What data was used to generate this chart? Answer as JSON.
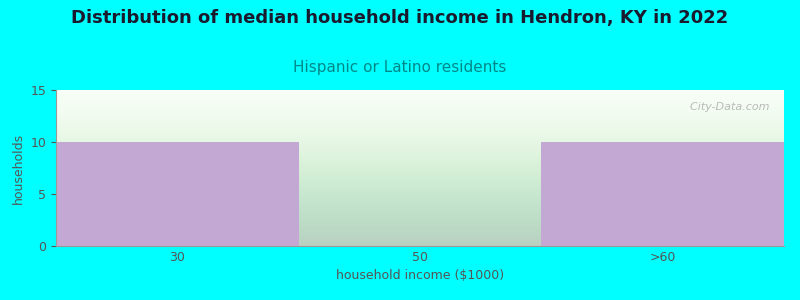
{
  "title": "Distribution of median household income in Hendron, KY in 2022",
  "subtitle": "Hispanic or Latino residents",
  "xlabel": "household income ($1000)",
  "ylabel": "households",
  "categories": [
    "30",
    "50",
    ">60"
  ],
  "values": [
    10,
    0,
    10
  ],
  "bar_color": "#C4A8D4",
  "background_color": "#00FFFF",
  "plot_bg_top_color": "#E8F5E0",
  "plot_bg_bottom_color": "#F8FFF8",
  "ylim": [
    0,
    15
  ],
  "yticks": [
    0,
    5,
    10,
    15
  ],
  "title_fontsize": 13,
  "title_color": "#1a1a2e",
  "subtitle_fontsize": 11,
  "subtitle_color": "#008888",
  "axis_label_fontsize": 9,
  "tick_fontsize": 9,
  "watermark_text": "  City-Data.com",
  "watermark_color": "#AAAAAA",
  "ylabel_color": "#555555",
  "xlabel_color": "#555555",
  "tick_color": "#555555"
}
